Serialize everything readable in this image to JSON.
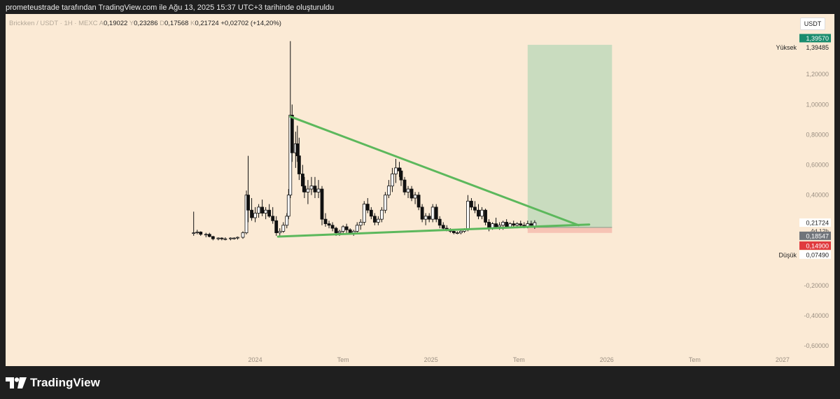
{
  "caption": "prometeustrade tarafından TradingView.com ile Ağu 13, 2025 15:37 UTC+3 tarihinde oluşturuldu",
  "legend": {
    "symbol": "Brickken / USDT · 1H · MEXC",
    "open_key": "A",
    "open": "0,19022",
    "high_key": "Y",
    "high": "0,23286",
    "low_key": "D",
    "low": "0,17568",
    "close_key": "K",
    "close": "0,21724",
    "change": "+0,02702 (+14,20%)"
  },
  "currency": "USDT",
  "price_labels": {
    "target": "1,39570",
    "high_label": "Yüksek",
    "high_value": "1,39485",
    "last": "0,21724",
    "countdown": "4d 12h",
    "entry": "0,18547",
    "stop": "0,14900",
    "low_label": "Düşük",
    "low_value": "0,07490"
  },
  "colors": {
    "background": "#fbead5",
    "up_candle": "#ffffff",
    "down_candle": "#111111",
    "trendline": "#5cb85c",
    "profit_zone": "#c9dcbf",
    "loss_zone": "#f6c3b4",
    "target_tag": "#1a8c6e",
    "stop_tag": "#e03a3e",
    "entry_tag": "#70747a"
  },
  "chart_data": {
    "type": "candlestick",
    "y_axis": {
      "ticks": [
        1.2,
        1.0,
        0.8,
        0.6,
        0.4,
        -0.2,
        -0.4,
        -0.6
      ],
      "tick_labels": [
        "1,20000",
        "1,00000",
        "0,80000",
        "0,60000",
        "0,40000",
        "-0,20000",
        "-0,40000",
        "-0,60000"
      ],
      "range": [
        -0.65,
        1.6
      ]
    },
    "x_axis": {
      "ticks": [
        2024.0,
        2024.5,
        2025.0,
        2025.5,
        2026.0,
        2026.5,
        2027.0
      ],
      "tick_labels": [
        "2024",
        "Tem",
        "2025",
        "Tem",
        "2026",
        "Tem",
        "2027"
      ],
      "range": [
        2022.58,
        2027.08
      ]
    },
    "candles": [
      {
        "t": 2023.65,
        "o": 0.145,
        "h": 0.29,
        "l": 0.13,
        "c": 0.15
      },
      {
        "t": 2023.67,
        "o": 0.15,
        "h": 0.17,
        "l": 0.14,
        "c": 0.155
      },
      {
        "t": 2023.69,
        "o": 0.155,
        "h": 0.16,
        "l": 0.13,
        "c": 0.14
      },
      {
        "t": 2023.72,
        "o": 0.14,
        "h": 0.15,
        "l": 0.12,
        "c": 0.14
      },
      {
        "t": 2023.74,
        "o": 0.14,
        "h": 0.15,
        "l": 0.12,
        "c": 0.125
      },
      {
        "t": 2023.76,
        "o": 0.125,
        "h": 0.13,
        "l": 0.1,
        "c": 0.11
      },
      {
        "t": 2023.79,
        "o": 0.11,
        "h": 0.12,
        "l": 0.1,
        "c": 0.115
      },
      {
        "t": 2023.81,
        "o": 0.115,
        "h": 0.12,
        "l": 0.1,
        "c": 0.11
      },
      {
        "t": 2023.83,
        "o": 0.11,
        "h": 0.12,
        "l": 0.1,
        "c": 0.11
      },
      {
        "t": 2023.86,
        "o": 0.11,
        "h": 0.12,
        "l": 0.1,
        "c": 0.115
      },
      {
        "t": 2023.88,
        "o": 0.115,
        "h": 0.12,
        "l": 0.105,
        "c": 0.115
      },
      {
        "t": 2023.9,
        "o": 0.115,
        "h": 0.125,
        "l": 0.105,
        "c": 0.12
      },
      {
        "t": 2023.93,
        "o": 0.12,
        "h": 0.16,
        "l": 0.11,
        "c": 0.15
      },
      {
        "t": 2023.95,
        "o": 0.15,
        "h": 0.43,
        "l": 0.14,
        "c": 0.4
      },
      {
        "t": 2023.96,
        "o": 0.4,
        "h": 0.66,
        "l": 0.22,
        "c": 0.3
      },
      {
        "t": 2023.98,
        "o": 0.3,
        "h": 0.38,
        "l": 0.23,
        "c": 0.25
      },
      {
        "t": 2024.0,
        "o": 0.25,
        "h": 0.32,
        "l": 0.22,
        "c": 0.28
      },
      {
        "t": 2024.02,
        "o": 0.28,
        "h": 0.34,
        "l": 0.25,
        "c": 0.32
      },
      {
        "t": 2024.04,
        "o": 0.32,
        "h": 0.37,
        "l": 0.26,
        "c": 0.28
      },
      {
        "t": 2024.06,
        "o": 0.28,
        "h": 0.32,
        "l": 0.24,
        "c": 0.3
      },
      {
        "t": 2024.08,
        "o": 0.3,
        "h": 0.34,
        "l": 0.25,
        "c": 0.26
      },
      {
        "t": 2024.1,
        "o": 0.26,
        "h": 0.32,
        "l": 0.21,
        "c": 0.23
      },
      {
        "t": 2024.12,
        "o": 0.23,
        "h": 0.26,
        "l": 0.13,
        "c": 0.15
      },
      {
        "t": 2024.14,
        "o": 0.15,
        "h": 0.18,
        "l": 0.12,
        "c": 0.16
      },
      {
        "t": 2024.16,
        "o": 0.16,
        "h": 0.22,
        "l": 0.15,
        "c": 0.2
      },
      {
        "t": 2024.18,
        "o": 0.2,
        "h": 0.28,
        "l": 0.18,
        "c": 0.26
      },
      {
        "t": 2024.19,
        "o": 0.26,
        "h": 0.44,
        "l": 0.24,
        "c": 0.4
      },
      {
        "t": 2024.2,
        "o": 0.4,
        "h": 1.42,
        "l": 0.38,
        "c": 0.93
      },
      {
        "t": 2024.21,
        "o": 0.93,
        "h": 1.0,
        "l": 0.62,
        "c": 0.68
      },
      {
        "t": 2024.23,
        "o": 0.68,
        "h": 0.82,
        "l": 0.58,
        "c": 0.74
      },
      {
        "t": 2024.24,
        "o": 0.74,
        "h": 0.86,
        "l": 0.62,
        "c": 0.66
      },
      {
        "t": 2024.25,
        "o": 0.66,
        "h": 0.78,
        "l": 0.5,
        "c": 0.54
      },
      {
        "t": 2024.27,
        "o": 0.54,
        "h": 0.6,
        "l": 0.42,
        "c": 0.46
      },
      {
        "t": 2024.28,
        "o": 0.46,
        "h": 0.52,
        "l": 0.38,
        "c": 0.42
      },
      {
        "t": 2024.3,
        "o": 0.42,
        "h": 0.5,
        "l": 0.34,
        "c": 0.44
      },
      {
        "t": 2024.32,
        "o": 0.44,
        "h": 0.52,
        "l": 0.4,
        "c": 0.46
      },
      {
        "t": 2024.34,
        "o": 0.46,
        "h": 0.52,
        "l": 0.38,
        "c": 0.42
      },
      {
        "t": 2024.36,
        "o": 0.42,
        "h": 0.5,
        "l": 0.38,
        "c": 0.44
      },
      {
        "t": 2024.38,
        "o": 0.44,
        "h": 0.46,
        "l": 0.2,
        "c": 0.24
      },
      {
        "t": 2024.4,
        "o": 0.24,
        "h": 0.28,
        "l": 0.19,
        "c": 0.21
      },
      {
        "t": 2024.42,
        "o": 0.21,
        "h": 0.23,
        "l": 0.18,
        "c": 0.2
      },
      {
        "t": 2024.44,
        "o": 0.2,
        "h": 0.22,
        "l": 0.16,
        "c": 0.18
      },
      {
        "t": 2024.46,
        "o": 0.18,
        "h": 0.19,
        "l": 0.13,
        "c": 0.15
      },
      {
        "t": 2024.48,
        "o": 0.15,
        "h": 0.17,
        "l": 0.13,
        "c": 0.16
      },
      {
        "t": 2024.5,
        "o": 0.16,
        "h": 0.2,
        "l": 0.14,
        "c": 0.19
      },
      {
        "t": 2024.52,
        "o": 0.19,
        "h": 0.21,
        "l": 0.15,
        "c": 0.17
      },
      {
        "t": 2024.54,
        "o": 0.17,
        "h": 0.18,
        "l": 0.14,
        "c": 0.15
      },
      {
        "t": 2024.56,
        "o": 0.15,
        "h": 0.17,
        "l": 0.13,
        "c": 0.16
      },
      {
        "t": 2024.58,
        "o": 0.16,
        "h": 0.22,
        "l": 0.15,
        "c": 0.2
      },
      {
        "t": 2024.6,
        "o": 0.2,
        "h": 0.24,
        "l": 0.17,
        "c": 0.22
      },
      {
        "t": 2024.62,
        "o": 0.22,
        "h": 0.36,
        "l": 0.2,
        "c": 0.34
      },
      {
        "t": 2024.64,
        "o": 0.34,
        "h": 0.38,
        "l": 0.28,
        "c": 0.3
      },
      {
        "t": 2024.66,
        "o": 0.3,
        "h": 0.32,
        "l": 0.24,
        "c": 0.26
      },
      {
        "t": 2024.68,
        "o": 0.26,
        "h": 0.28,
        "l": 0.2,
        "c": 0.22
      },
      {
        "t": 2024.7,
        "o": 0.22,
        "h": 0.26,
        "l": 0.2,
        "c": 0.24
      },
      {
        "t": 2024.72,
        "o": 0.24,
        "h": 0.32,
        "l": 0.22,
        "c": 0.3
      },
      {
        "t": 2024.74,
        "o": 0.3,
        "h": 0.42,
        "l": 0.28,
        "c": 0.4
      },
      {
        "t": 2024.76,
        "o": 0.4,
        "h": 0.5,
        "l": 0.38,
        "c": 0.46
      },
      {
        "t": 2024.78,
        "o": 0.46,
        "h": 0.58,
        "l": 0.42,
        "c": 0.54
      },
      {
        "t": 2024.8,
        "o": 0.54,
        "h": 0.64,
        "l": 0.48,
        "c": 0.58
      },
      {
        "t": 2024.82,
        "o": 0.58,
        "h": 0.62,
        "l": 0.52,
        "c": 0.56
      },
      {
        "t": 2024.83,
        "o": 0.56,
        "h": 0.58,
        "l": 0.46,
        "c": 0.5
      },
      {
        "t": 2024.85,
        "o": 0.5,
        "h": 0.52,
        "l": 0.4,
        "c": 0.42
      },
      {
        "t": 2024.87,
        "o": 0.42,
        "h": 0.46,
        "l": 0.38,
        "c": 0.44
      },
      {
        "t": 2024.89,
        "o": 0.44,
        "h": 0.46,
        "l": 0.36,
        "c": 0.38
      },
      {
        "t": 2024.91,
        "o": 0.38,
        "h": 0.42,
        "l": 0.34,
        "c": 0.4
      },
      {
        "t": 2024.93,
        "o": 0.4,
        "h": 0.42,
        "l": 0.3,
        "c": 0.32
      },
      {
        "t": 2024.95,
        "o": 0.32,
        "h": 0.34,
        "l": 0.22,
        "c": 0.24
      },
      {
        "t": 2024.97,
        "o": 0.24,
        "h": 0.28,
        "l": 0.2,
        "c": 0.26
      },
      {
        "t": 2024.99,
        "o": 0.26,
        "h": 0.28,
        "l": 0.22,
        "c": 0.24
      },
      {
        "t": 2025.01,
        "o": 0.24,
        "h": 0.34,
        "l": 0.22,
        "c": 0.32
      },
      {
        "t": 2025.03,
        "o": 0.32,
        "h": 0.34,
        "l": 0.22,
        "c": 0.24
      },
      {
        "t": 2025.05,
        "o": 0.24,
        "h": 0.26,
        "l": 0.18,
        "c": 0.2
      },
      {
        "t": 2025.07,
        "o": 0.2,
        "h": 0.22,
        "l": 0.17,
        "c": 0.18
      },
      {
        "t": 2025.09,
        "o": 0.18,
        "h": 0.2,
        "l": 0.16,
        "c": 0.17
      },
      {
        "t": 2025.11,
        "o": 0.17,
        "h": 0.18,
        "l": 0.15,
        "c": 0.16
      },
      {
        "t": 2025.13,
        "o": 0.16,
        "h": 0.17,
        "l": 0.14,
        "c": 0.15
      },
      {
        "t": 2025.15,
        "o": 0.15,
        "h": 0.16,
        "l": 0.14,
        "c": 0.15
      },
      {
        "t": 2025.17,
        "o": 0.15,
        "h": 0.17,
        "l": 0.14,
        "c": 0.16
      },
      {
        "t": 2025.19,
        "o": 0.16,
        "h": 0.18,
        "l": 0.15,
        "c": 0.17
      },
      {
        "t": 2025.21,
        "o": 0.17,
        "h": 0.4,
        "l": 0.16,
        "c": 0.36
      },
      {
        "t": 2025.23,
        "o": 0.36,
        "h": 0.38,
        "l": 0.3,
        "c": 0.32
      },
      {
        "t": 2025.25,
        "o": 0.32,
        "h": 0.36,
        "l": 0.28,
        "c": 0.3
      },
      {
        "t": 2025.27,
        "o": 0.3,
        "h": 0.34,
        "l": 0.24,
        "c": 0.26
      },
      {
        "t": 2025.29,
        "o": 0.26,
        "h": 0.32,
        "l": 0.24,
        "c": 0.3
      },
      {
        "t": 2025.31,
        "o": 0.3,
        "h": 0.31,
        "l": 0.2,
        "c": 0.22
      },
      {
        "t": 2025.33,
        "o": 0.22,
        "h": 0.24,
        "l": 0.16,
        "c": 0.18
      },
      {
        "t": 2025.35,
        "o": 0.18,
        "h": 0.22,
        "l": 0.17,
        "c": 0.21
      },
      {
        "t": 2025.37,
        "o": 0.21,
        "h": 0.25,
        "l": 0.18,
        "c": 0.19
      },
      {
        "t": 2025.39,
        "o": 0.19,
        "h": 0.22,
        "l": 0.17,
        "c": 0.2
      },
      {
        "t": 2025.41,
        "o": 0.2,
        "h": 0.23,
        "l": 0.17,
        "c": 0.22
      },
      {
        "t": 2025.43,
        "o": 0.22,
        "h": 0.24,
        "l": 0.18,
        "c": 0.19
      },
      {
        "t": 2025.45,
        "o": 0.19,
        "h": 0.22,
        "l": 0.18,
        "c": 0.21
      },
      {
        "t": 2025.47,
        "o": 0.21,
        "h": 0.23,
        "l": 0.19,
        "c": 0.2
      },
      {
        "t": 2025.49,
        "o": 0.2,
        "h": 0.22,
        "l": 0.18,
        "c": 0.21
      },
      {
        "t": 2025.51,
        "o": 0.21,
        "h": 0.23,
        "l": 0.19,
        "c": 0.2
      },
      {
        "t": 2025.53,
        "o": 0.2,
        "h": 0.22,
        "l": 0.18,
        "c": 0.19
      },
      {
        "t": 2025.55,
        "o": 0.19,
        "h": 0.23,
        "l": 0.18,
        "c": 0.21
      },
      {
        "t": 2025.57,
        "o": 0.21,
        "h": 0.23,
        "l": 0.19,
        "c": 0.2
      },
      {
        "t": 2025.59,
        "o": 0.19022,
        "h": 0.23286,
        "l": 0.17568,
        "c": 0.21724
      }
    ],
    "trendlines": [
      {
        "name": "upper",
        "points": [
          [
            2024.2,
            0.92
          ],
          [
            2025.84,
            0.2
          ]
        ],
        "color": "#5cb85c"
      },
      {
        "name": "lower",
        "points": [
          [
            2024.13,
            0.125
          ],
          [
            2025.9,
            0.205
          ]
        ],
        "color": "#5cb85c"
      }
    ],
    "position": {
      "type": "long",
      "start": 2025.55,
      "end": 2026.03,
      "entry": 0.18547,
      "target": 1.3957,
      "stop": 0.149
    }
  }
}
